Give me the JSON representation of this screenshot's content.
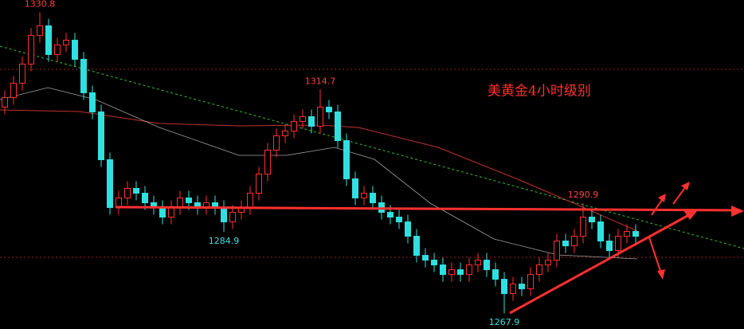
{
  "chart_data": {
    "type": "candlestick",
    "title": "美黄金4小时级别",
    "up_color": "#ff3030",
    "down_color": "#30e0e0",
    "ylim": [
      1264.6,
      1333.4
    ],
    "open": [
      1311,
      1313,
      1316,
      1320,
      1326,
      1328,
      1322,
      1324,
      1325,
      1321,
      1314,
      1310,
      1300,
      1290,
      1292,
      1294,
      1293,
      1291,
      1290,
      1288,
      1290,
      1292,
      1291,
      1290,
      1291,
      1290,
      1287,
      1289,
      1290,
      1293,
      1297,
      1302,
      1305,
      1306,
      1308,
      1309,
      1307,
      1311,
      1310,
      1304,
      1296,
      1292,
      1293,
      1291,
      1289,
      1288,
      1287,
      1284,
      1280,
      1279,
      1278,
      1276,
      1277,
      1276,
      1278,
      1279,
      1277,
      1275,
      1272,
      1274,
      1273,
      1276,
      1278,
      1279,
      1283,
      1282,
      1284,
      1288,
      1287,
      1283,
      1281,
      1284,
      1285
    ],
    "high": [
      1314.5,
      1317.5,
      1321.5,
      1327.5,
      1330.8,
      1329.5,
      1325.5,
      1326.5,
      1326.5,
      1322.5,
      1315.5,
      1311.5,
      1301.5,
      1293.5,
      1295.5,
      1295.5,
      1294.5,
      1292.5,
      1291.5,
      1291.5,
      1293.5,
      1293.5,
      1292.5,
      1292.5,
      1292.5,
      1291.5,
      1290.5,
      1291.5,
      1294.5,
      1298.5,
      1303.5,
      1306.5,
      1307.5,
      1309.5,
      1310.5,
      1310.5,
      1314.7,
      1312.5,
      1311.5,
      1305.5,
      1297.5,
      1294.5,
      1294.5,
      1292.5,
      1290.5,
      1289.5,
      1288.5,
      1285.5,
      1281.5,
      1280.5,
      1279.5,
      1278.5,
      1278.5,
      1279.5,
      1280.5,
      1280.5,
      1278.5,
      1276.5,
      1275.5,
      1275.5,
      1277.5,
      1279.5,
      1280.5,
      1284.5,
      1284.5,
      1285.5,
      1290.9,
      1289.5,
      1288.5,
      1284.5,
      1285.5,
      1286.5,
      1286.5
    ],
    "low": [
      1309.5,
      1311.5,
      1314.5,
      1318.5,
      1324.5,
      1320.5,
      1320.5,
      1322.5,
      1319.5,
      1312.5,
      1308.5,
      1298.5,
      1288.5,
      1288.5,
      1290.5,
      1291.5,
      1289.5,
      1288.5,
      1286.5,
      1286.5,
      1288.5,
      1289.5,
      1288.5,
      1288.5,
      1288.5,
      1284.9,
      1285.5,
      1287.5,
      1288.5,
      1291.5,
      1295.5,
      1300.5,
      1303.5,
      1304.5,
      1306.5,
      1305.5,
      1305.5,
      1308.5,
      1302.5,
      1294.5,
      1290.5,
      1290.5,
      1289.5,
      1287.5,
      1286.5,
      1285.5,
      1282.5,
      1278.5,
      1277.5,
      1276.5,
      1274.5,
      1274.5,
      1274.5,
      1274.5,
      1276.5,
      1275.5,
      1273.5,
      1267.9,
      1270.5,
      1271.5,
      1271.5,
      1274.5,
      1276.5,
      1277.5,
      1280.5,
      1280.5,
      1282.5,
      1285.5,
      1281.5,
      1279.5,
      1279.5,
      1282.5,
      1282.5
    ],
    "close": [
      1313,
      1316,
      1320,
      1326,
      1328,
      1322,
      1324,
      1325,
      1321,
      1314,
      1310,
      1300,
      1290,
      1292,
      1294,
      1293,
      1291,
      1290,
      1288,
      1290,
      1292,
      1291,
      1290,
      1291,
      1290,
      1287,
      1289,
      1290,
      1293,
      1297,
      1302,
      1305,
      1306,
      1308,
      1309,
      1307,
      1311,
      1310,
      1304,
      1296,
      1292,
      1293,
      1291,
      1289,
      1288,
      1287,
      1284,
      1280,
      1279,
      1278,
      1276,
      1277,
      1276,
      1278,
      1279,
      1277,
      1275,
      1272,
      1274,
      1273,
      1276,
      1278,
      1279,
      1283,
      1282,
      1284,
      1288,
      1287,
      1283,
      1281,
      1284,
      1285,
      1284
    ],
    "annotations": [
      {
        "value": 1330.8,
        "label": "1330.8",
        "color": "#ff4040"
      },
      {
        "value": 1314.7,
        "label": "1314.7",
        "color": "#ff4040"
      },
      {
        "value": 1284.9,
        "label": "1284.9",
        "color": "#40e0e0"
      },
      {
        "value": 1290.9,
        "label": "1290.9",
        "color": "#ff4040"
      },
      {
        "value": 1267.9,
        "label": "1267.9",
        "color": "#40e0e0"
      }
    ]
  }
}
